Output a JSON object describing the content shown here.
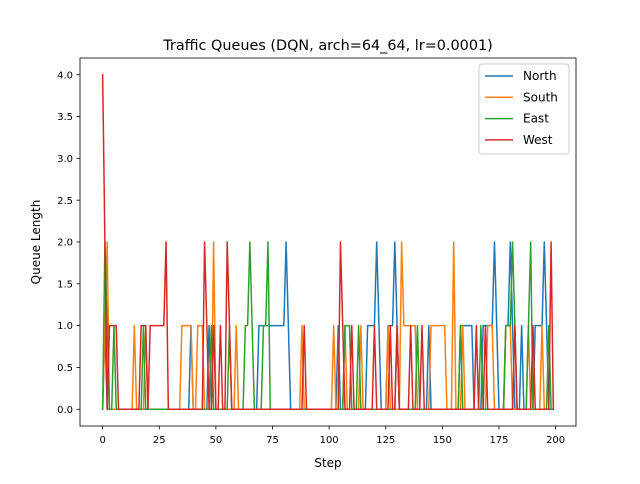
{
  "chart_data": {
    "type": "line",
    "title": "Traffic Queues (DQN, arch=64_64, lr=0.0001)",
    "xlabel": "Step",
    "ylabel": "Queue Length",
    "xlim": [
      -10,
      209
    ],
    "ylim": [
      -0.2,
      4.2
    ],
    "xticks": [
      0,
      25,
      50,
      75,
      100,
      125,
      150,
      175,
      200
    ],
    "yticks": [
      0.0,
      0.5,
      1.0,
      1.5,
      2.0,
      2.5,
      3.0,
      3.5,
      4.0
    ],
    "xtick_labels": [
      "0",
      "25",
      "50",
      "75",
      "100",
      "125",
      "150",
      "175",
      "200"
    ],
    "ytick_labels": [
      "0.0",
      "0.5",
      "1.0",
      "1.5",
      "2.0",
      "2.5",
      "3.0",
      "3.5",
      "4.0"
    ],
    "grid": false,
    "legend_position": "top-right",
    "series": [
      {
        "name": "North",
        "color": "#1f77b4",
        "points": [
          [
            0,
            0
          ],
          [
            1,
            1
          ],
          [
            2,
            0
          ],
          [
            38,
            0
          ],
          [
            39,
            1
          ],
          [
            40,
            0
          ],
          [
            46,
            0
          ],
          [
            47,
            1
          ],
          [
            48,
            0
          ],
          [
            68,
            0
          ],
          [
            69,
            1
          ],
          [
            79,
            1
          ],
          [
            80,
            1
          ],
          [
            81,
            2
          ],
          [
            82,
            1
          ],
          [
            83,
            0
          ],
          [
            103,
            0
          ],
          [
            104,
            1
          ],
          [
            105,
            0
          ],
          [
            116,
            0
          ],
          [
            117,
            1
          ],
          [
            120,
            1
          ],
          [
            121,
            2
          ],
          [
            122,
            1
          ],
          [
            123,
            0
          ],
          [
            125,
            0
          ],
          [
            126,
            1
          ],
          [
            128,
            1
          ],
          [
            129,
            2
          ],
          [
            130,
            1
          ],
          [
            131,
            0
          ],
          [
            143,
            0
          ],
          [
            144,
            1
          ],
          [
            145,
            0
          ],
          [
            157,
            0
          ],
          [
            158,
            1
          ],
          [
            163,
            1
          ],
          [
            164,
            0
          ],
          [
            167,
            0
          ],
          [
            168,
            1
          ],
          [
            172,
            1
          ],
          [
            173,
            2
          ],
          [
            174,
            1
          ],
          [
            175,
            0
          ],
          [
            177,
            0
          ],
          [
            178,
            1
          ],
          [
            179,
            1
          ],
          [
            180,
            2
          ],
          [
            181,
            1
          ],
          [
            182,
            0
          ],
          [
            184,
            0
          ],
          [
            185,
            1
          ],
          [
            186,
            0
          ],
          [
            190,
            0
          ],
          [
            191,
            1
          ],
          [
            194,
            1
          ],
          [
            195,
            2
          ],
          [
            196,
            1
          ],
          [
            197,
            0
          ],
          [
            199,
            0
          ]
        ]
      },
      {
        "name": "South",
        "color": "#ff7f0e",
        "points": [
          [
            0,
            0
          ],
          [
            1,
            1
          ],
          [
            2,
            2
          ],
          [
            3,
            0
          ],
          [
            13,
            0
          ],
          [
            14,
            1
          ],
          [
            15,
            0
          ],
          [
            18,
            0
          ],
          [
            19,
            1
          ],
          [
            20,
            0
          ],
          [
            34,
            0
          ],
          [
            35,
            1
          ],
          [
            39,
            1
          ],
          [
            40,
            0
          ],
          [
            41,
            0
          ],
          [
            42,
            1
          ],
          [
            44,
            1
          ],
          [
            45,
            0
          ],
          [
            48,
            0
          ],
          [
            49,
            2
          ],
          [
            50,
            0
          ],
          [
            58,
            0
          ],
          [
            59,
            1
          ],
          [
            60,
            0
          ],
          [
            87,
            0
          ],
          [
            88,
            1
          ],
          [
            89,
            0
          ],
          [
            101,
            0
          ],
          [
            102,
            1
          ],
          [
            103,
            0
          ],
          [
            106,
            0
          ],
          [
            107,
            1
          ],
          [
            108,
            0
          ],
          [
            113,
            0
          ],
          [
            114,
            1
          ],
          [
            115,
            0
          ],
          [
            125,
            0
          ],
          [
            126,
            1
          ],
          [
            127,
            0
          ],
          [
            131,
            0
          ],
          [
            132,
            2
          ],
          [
            133,
            1
          ],
          [
            138,
            1
          ],
          [
            139,
            0
          ],
          [
            144,
            0
          ],
          [
            145,
            1
          ],
          [
            151,
            1
          ],
          [
            152,
            0
          ],
          [
            154,
            0
          ],
          [
            155,
            2
          ],
          [
            156,
            0
          ],
          [
            158,
            0
          ],
          [
            159,
            1
          ],
          [
            160,
            0
          ],
          [
            169,
            0
          ],
          [
            170,
            1
          ],
          [
            172,
            1
          ],
          [
            173,
            0
          ],
          [
            177,
            0
          ],
          [
            178,
            1
          ],
          [
            180,
            1
          ],
          [
            181,
            0
          ],
          [
            187,
            0
          ],
          [
            188,
            1
          ],
          [
            189,
            0
          ],
          [
            193,
            0
          ],
          [
            194,
            1
          ],
          [
            195,
            0
          ]
        ]
      },
      {
        "name": "East",
        "color": "#2ca02c",
        "points": [
          [
            0,
            0
          ],
          [
            1,
            2
          ],
          [
            2,
            1
          ],
          [
            3,
            0
          ],
          [
            4,
            0
          ],
          [
            5,
            1
          ],
          [
            6,
            0
          ],
          [
            17,
            0
          ],
          [
            18,
            1
          ],
          [
            19,
            0
          ],
          [
            47,
            0
          ],
          [
            48,
            1
          ],
          [
            49,
            0
          ],
          [
            55,
            0
          ],
          [
            56,
            1
          ],
          [
            57,
            0
          ],
          [
            62,
            0
          ],
          [
            63,
            1
          ],
          [
            64,
            1
          ],
          [
            65,
            2
          ],
          [
            66,
            1
          ],
          [
            67,
            0
          ],
          [
            70,
            0
          ],
          [
            71,
            1
          ],
          [
            72,
            1
          ],
          [
            73,
            2
          ],
          [
            74,
            0
          ],
          [
            106,
            0
          ],
          [
            107,
            1
          ],
          [
            109,
            1
          ],
          [
            110,
            0
          ],
          [
            112,
            0
          ],
          [
            113,
            1
          ],
          [
            114,
            0
          ],
          [
            129,
            0
          ],
          [
            130,
            1
          ],
          [
            131,
            0
          ],
          [
            138,
            0
          ],
          [
            139,
            1
          ],
          [
            140,
            0
          ],
          [
            157,
            0
          ],
          [
            158,
            1
          ],
          [
            159,
            0
          ],
          [
            166,
            0
          ],
          [
            167,
            1
          ],
          [
            168,
            0
          ],
          [
            177,
            0
          ],
          [
            178,
            1
          ],
          [
            180,
            1
          ],
          [
            181,
            2
          ],
          [
            182,
            1
          ],
          [
            183,
            0
          ],
          [
            187,
            0
          ],
          [
            188,
            1
          ],
          [
            189,
            2
          ],
          [
            190,
            0
          ],
          [
            196,
            0
          ],
          [
            197,
            1
          ],
          [
            198,
            0
          ]
        ]
      },
      {
        "name": "West",
        "color": "#d62728",
        "points": [
          [
            0,
            4
          ],
          [
            1,
            2
          ],
          [
            2,
            0
          ],
          [
            3,
            1
          ],
          [
            6,
            1
          ],
          [
            7,
            0
          ],
          [
            16,
            0
          ],
          [
            17,
            1
          ],
          [
            19,
            1
          ],
          [
            20,
            0
          ],
          [
            21,
            1
          ],
          [
            27,
            1
          ],
          [
            28,
            2
          ],
          [
            29,
            0
          ],
          [
            44,
            0
          ],
          [
            45,
            2
          ],
          [
            46,
            1
          ],
          [
            47,
            0
          ],
          [
            48,
            0
          ],
          [
            49,
            1
          ],
          [
            50,
            0
          ],
          [
            51,
            0
          ],
          [
            52,
            1
          ],
          [
            53,
            0
          ],
          [
            54,
            0
          ],
          [
            55,
            2
          ],
          [
            56,
            1
          ],
          [
            57,
            0
          ],
          [
            88,
            0
          ],
          [
            89,
            1
          ],
          [
            90,
            0
          ],
          [
            104,
            0
          ],
          [
            105,
            2
          ],
          [
            106,
            1
          ],
          [
            107,
            0
          ],
          [
            109,
            0
          ],
          [
            110,
            1
          ],
          [
            111,
            0
          ],
          [
            119,
            0
          ],
          [
            120,
            1
          ],
          [
            121,
            0
          ],
          [
            126,
            0
          ],
          [
            127,
            1
          ],
          [
            128,
            0
          ],
          [
            129,
            0
          ],
          [
            130,
            1
          ],
          [
            131,
            0
          ],
          [
            135,
            0
          ],
          [
            136,
            1
          ],
          [
            137,
            0
          ],
          [
            140,
            0
          ],
          [
            141,
            1
          ],
          [
            142,
            0
          ],
          [
            164,
            0
          ],
          [
            165,
            1
          ],
          [
            166,
            0
          ],
          [
            168,
            0
          ],
          [
            169,
            1
          ],
          [
            170,
            0
          ],
          [
            181,
            0
          ],
          [
            182,
            1
          ],
          [
            183,
            0
          ],
          [
            189,
            0
          ],
          [
            190,
            1
          ],
          [
            191,
            0
          ],
          [
            197,
            0
          ],
          [
            198,
            2
          ],
          [
            199,
            0
          ]
        ]
      }
    ]
  }
}
